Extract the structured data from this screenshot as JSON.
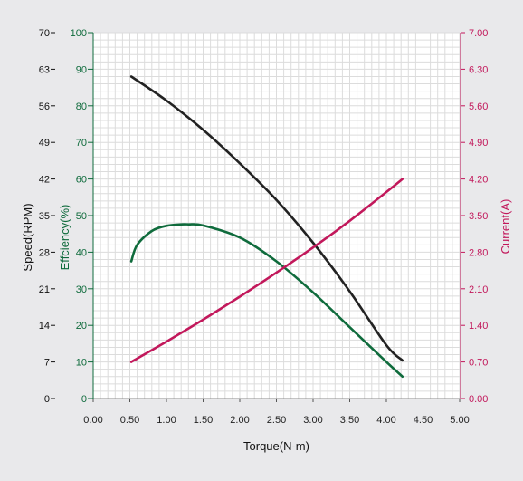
{
  "chart_data": {
    "type": "line",
    "xlabel": "Torque(N-m)",
    "x_ticks": [
      "0.00",
      "0.50",
      "1.00",
      "1.50",
      "2.00",
      "2.50",
      "3.00",
      "3.50",
      "4.00",
      "4.50",
      "5.00"
    ],
    "xlim": [
      0,
      5
    ],
    "grid": true,
    "axes": {
      "speed": {
        "label": "Speed(RPM)",
        "ticks": [
          "0",
          "7",
          "14",
          "21",
          "28",
          "35",
          "42",
          "49",
          "56",
          "63",
          "70"
        ],
        "ylim": [
          0,
          70
        ],
        "color": "#111111"
      },
      "efficiency": {
        "label": "Effciency(%)",
        "ticks": [
          "0",
          "10",
          "20",
          "30",
          "40",
          "50",
          "60",
          "70",
          "80",
          "90",
          "100"
        ],
        "ylim": [
          0,
          100
        ],
        "color": "#0f6b3c"
      },
      "current": {
        "label": "Current(A)",
        "ticks": [
          "0.00",
          "0.70",
          "1.40",
          "2.10",
          "2.80",
          "3.50",
          "4.20",
          "4.90",
          "5.60",
          "6.30",
          "7.00"
        ],
        "ylim": [
          0,
          7
        ],
        "color": "#c2185b"
      }
    },
    "series": [
      {
        "axis": "speed",
        "color": "#222222",
        "x": [
          0.52,
          1.0,
          1.5,
          2.0,
          2.5,
          3.0,
          3.5,
          4.0,
          4.22
        ],
        "y": [
          61.6,
          57.0,
          51.4,
          45.0,
          38.0,
          29.8,
          20.5,
          10.2,
          7.3
        ]
      },
      {
        "axis": "efficiency",
        "color": "#0f6b3c",
        "x": [
          0.52,
          0.6,
          0.8,
          1.0,
          1.2,
          1.3,
          1.5,
          2.0,
          2.5,
          3.0,
          3.5,
          4.0,
          4.22
        ],
        "y": [
          37.5,
          42.0,
          45.8,
          47.2,
          47.6,
          47.6,
          47.3,
          44.0,
          37.5,
          29.0,
          19.5,
          10.0,
          6.0
        ]
      },
      {
        "axis": "current",
        "color": "#c2185b",
        "x": [
          0.52,
          1.0,
          1.5,
          2.0,
          2.5,
          3.0,
          3.5,
          4.0,
          4.22
        ],
        "y": [
          0.7,
          1.09,
          1.51,
          1.95,
          2.41,
          2.89,
          3.4,
          3.95,
          4.2
        ]
      }
    ]
  }
}
